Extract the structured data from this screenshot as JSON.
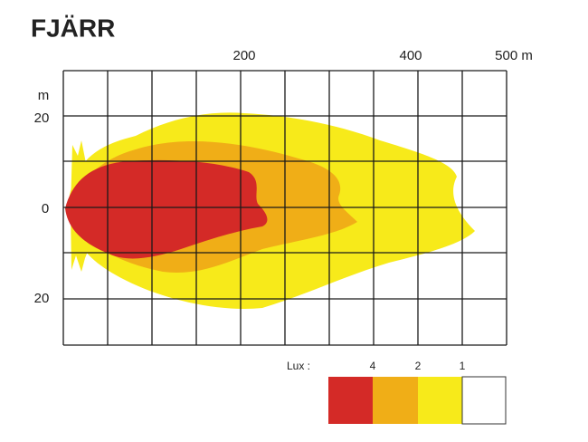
{
  "title": "FJÄRR",
  "distance_axis": {
    "labels": [
      "200",
      "400",
      "500 m"
    ]
  },
  "lateral_axis": {
    "unit": "m",
    "labels": [
      "20",
      "0",
      "20"
    ]
  },
  "legend": {
    "title": "Lux :",
    "levels": [
      "4",
      "2",
      "1"
    ]
  }
}
